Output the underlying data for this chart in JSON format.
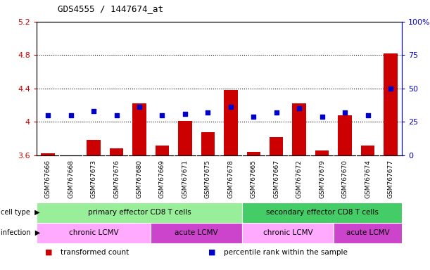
{
  "title": "GDS4555 / 1447674_at",
  "samples": [
    "GSM767666",
    "GSM767668",
    "GSM767673",
    "GSM767676",
    "GSM767680",
    "GSM767669",
    "GSM767671",
    "GSM767675",
    "GSM767678",
    "GSM767665",
    "GSM767667",
    "GSM767672",
    "GSM767679",
    "GSM767670",
    "GSM767674",
    "GSM767677"
  ],
  "bar_values": [
    3.62,
    3.58,
    3.78,
    3.68,
    4.22,
    3.72,
    4.01,
    3.88,
    4.38,
    3.64,
    3.82,
    4.22,
    3.66,
    4.08,
    3.72,
    4.82
  ],
  "dot_values": [
    30,
    30,
    33,
    30,
    36,
    30,
    31,
    32,
    36,
    29,
    32,
    35,
    29,
    32,
    30,
    50
  ],
  "ylim_left": [
    3.6,
    5.2
  ],
  "ylim_right": [
    0,
    100
  ],
  "yticks_left": [
    3.6,
    4.0,
    4.4,
    4.8,
    5.2
  ],
  "yticks_right": [
    0,
    25,
    50,
    75,
    100
  ],
  "ytick_labels_left": [
    "3.6",
    "4",
    "4.4",
    "4.8",
    "5.2"
  ],
  "ytick_labels_right": [
    "0",
    "25",
    "50",
    "75",
    "100%"
  ],
  "bar_color": "#cc0000",
  "dot_color": "#0000cc",
  "bg_color": "#ffffff",
  "plot_bg_color": "#ffffff",
  "tick_area_color": "#d0d0d0",
  "cell_type_groups": [
    {
      "label": "primary effector CD8 T cells",
      "start": 0,
      "end": 9,
      "color": "#99ee99"
    },
    {
      "label": "secondary effector CD8 T cells",
      "start": 9,
      "end": 16,
      "color": "#44cc66"
    }
  ],
  "infection_groups": [
    {
      "label": "chronic LCMV",
      "start": 0,
      "end": 5,
      "color": "#ffaaff"
    },
    {
      "label": "acute LCMV",
      "start": 5,
      "end": 9,
      "color": "#cc44cc"
    },
    {
      "label": "chronic LCMV",
      "start": 9,
      "end": 13,
      "color": "#ffaaff"
    },
    {
      "label": "acute LCMV",
      "start": 13,
      "end": 16,
      "color": "#cc44cc"
    }
  ],
  "legend_items": [
    {
      "label": "transformed count",
      "color": "#cc0000"
    },
    {
      "label": "percentile rank within the sample",
      "color": "#0000cc"
    }
  ],
  "dotted_lines": [
    4.0,
    4.4,
    4.8
  ]
}
